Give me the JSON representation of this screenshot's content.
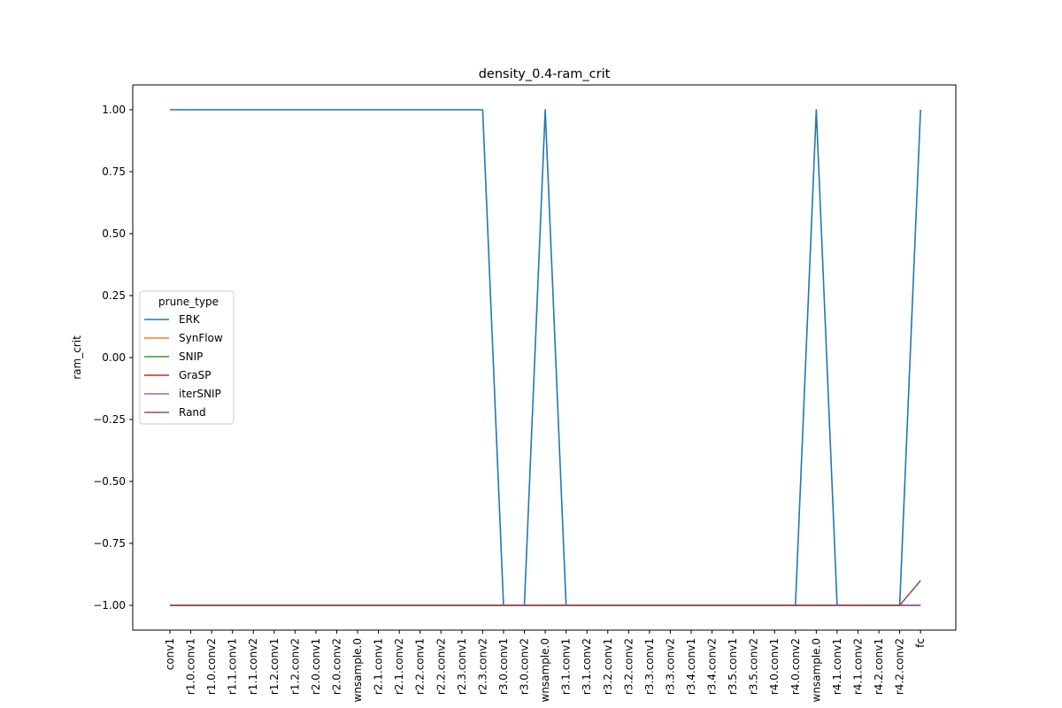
{
  "chart_data": {
    "type": "line",
    "title": "density_0.4-ram_crit",
    "xlabel": "",
    "ylabel": "ram_crit",
    "ylim": [
      -1.1,
      1.1
    ],
    "yticks": [
      1.0,
      0.75,
      0.5,
      0.25,
      0.0,
      -0.25,
      -0.5,
      -0.75,
      -1.0
    ],
    "ytick_labels": [
      "1.00",
      "0.75",
      "0.50",
      "0.25",
      "0.00",
      "−0.25",
      "−0.50",
      "−0.75",
      "−1.00"
    ],
    "grid": false,
    "legend": {
      "title": "prune_type",
      "placement": "center-left"
    },
    "categories": [
      "conv1",
      "r1.0.conv1",
      "r1.0.conv2",
      "r1.1.conv1",
      "r1.1.conv2",
      "r1.2.conv1",
      "r1.2.conv2",
      "r2.0.conv1",
      "r2.0.conv2",
      "wnsample.0",
      "r2.1.conv1",
      "r2.1.conv2",
      "r2.2.conv1",
      "r2.2.conv2",
      "r2.3.conv1",
      "r2.3.conv2",
      "r3.0.conv1",
      "r3.0.conv2",
      "wnsample.0",
      "r3.1.conv1",
      "r3.1.conv2",
      "r3.2.conv1",
      "r3.2.conv2",
      "r3.3.conv1",
      "r3.3.conv2",
      "r3.4.conv1",
      "r3.4.conv2",
      "r3.5.conv1",
      "r3.5.conv2",
      "r4.0.conv1",
      "r4.0.conv2",
      "wnsample.0",
      "r4.1.conv1",
      "r4.1.conv2",
      "r4.2.conv1",
      "r4.2.conv2",
      "fc"
    ],
    "series": [
      {
        "name": "ERK",
        "color": "#1f77b4",
        "values": [
          1,
          1,
          1,
          1,
          1,
          1,
          1,
          1,
          1,
          1,
          1,
          1,
          1,
          1,
          1,
          1,
          -1,
          -1,
          1,
          -1,
          -1,
          -1,
          -1,
          -1,
          -1,
          -1,
          -1,
          -1,
          -1,
          -1,
          -1,
          1,
          -1,
          -1,
          -1,
          -1,
          1
        ]
      },
      {
        "name": "SynFlow",
        "color": "#ff7f0e",
        "values": [
          -1,
          -1,
          -1,
          -1,
          -1,
          -1,
          -1,
          -1,
          -1,
          -1,
          -1,
          -1,
          -1,
          -1,
          -1,
          -1,
          -1,
          -1,
          -1,
          -1,
          -1,
          -1,
          -1,
          -1,
          -1,
          -1,
          -1,
          -1,
          -1,
          -1,
          -1,
          -1,
          -1,
          -1,
          -1,
          -1,
          -1
        ]
      },
      {
        "name": "SNIP",
        "color": "#2ca02c",
        "values": [
          -1,
          -1,
          -1,
          -1,
          -1,
          -1,
          -1,
          -1,
          -1,
          -1,
          -1,
          -1,
          -1,
          -1,
          -1,
          -1,
          -1,
          -1,
          -1,
          -1,
          -1,
          -1,
          -1,
          -1,
          -1,
          -1,
          -1,
          -1,
          -1,
          -1,
          -1,
          -1,
          -1,
          -1,
          -1,
          -1,
          -1
        ]
      },
      {
        "name": "GraSP",
        "color": "#d62728",
        "values": [
          -1,
          -1,
          -1,
          -1,
          -1,
          -1,
          -1,
          -1,
          -1,
          -1,
          -1,
          -1,
          -1,
          -1,
          -1,
          -1,
          -1,
          -1,
          -1,
          -1,
          -1,
          -1,
          -1,
          -1,
          -1,
          -1,
          -1,
          -1,
          -1,
          -1,
          -1,
          -1,
          -1,
          -1,
          -1,
          -1,
          -1
        ]
      },
      {
        "name": "iterSNIP",
        "color": "#9467bd",
        "values": [
          -1,
          -1,
          -1,
          -1,
          -1,
          -1,
          -1,
          -1,
          -1,
          -1,
          -1,
          -1,
          -1,
          -1,
          -1,
          -1,
          -1,
          -1,
          -1,
          -1,
          -1,
          -1,
          -1,
          -1,
          -1,
          -1,
          -1,
          -1,
          -1,
          -1,
          -1,
          -1,
          -1,
          -1,
          -1,
          -1,
          -1
        ]
      },
      {
        "name": "Rand",
        "color": "#8c564b",
        "values": [
          -1,
          -1,
          -1,
          -1,
          -1,
          -1,
          -1,
          -1,
          -1,
          -1,
          -1,
          -1,
          -1,
          -1,
          -1,
          -1,
          -1,
          -1,
          -1,
          -1,
          -1,
          -1,
          -1,
          -1,
          -1,
          -1,
          -1,
          -1,
          -1,
          -1,
          -1,
          -1,
          -1,
          -1,
          -1,
          -1,
          -0.9
        ]
      }
    ]
  }
}
